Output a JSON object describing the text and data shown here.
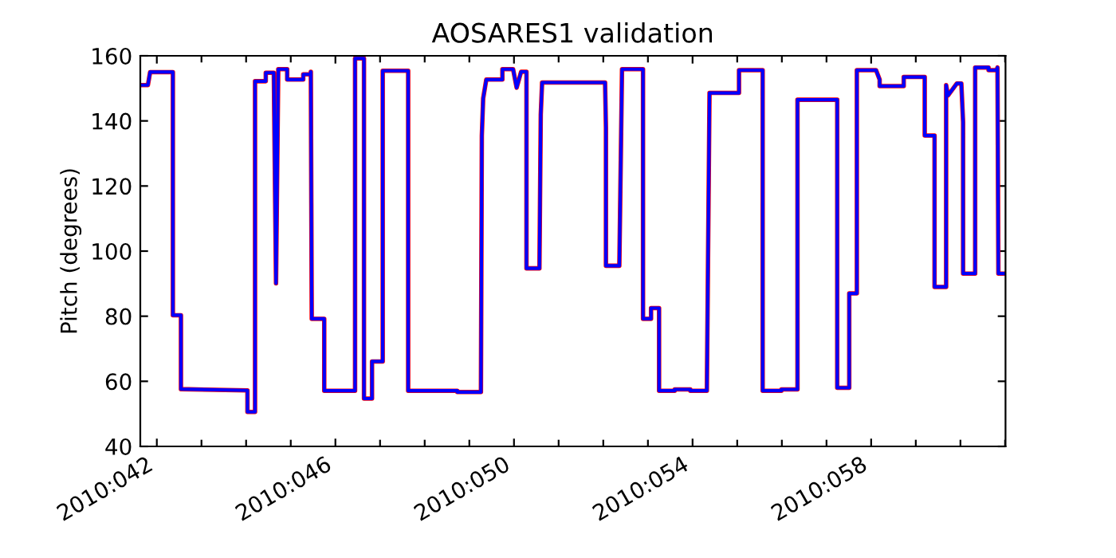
{
  "chart_data": {
    "type": "line",
    "title": "AOSARES1 validation",
    "ylabel": "Pitch (degrees)",
    "x": [
      "2010-02-10T15:07",
      "2010-02-10T19:12",
      "2010-02-10T20:24",
      "2010-02-11T08:38",
      "2010-02-11T08:38",
      "2010-02-11T12:58",
      "2010-02-11T12:58",
      "2010-02-13T00:43",
      "2010-02-13T00:43",
      "2010-02-13T04:48",
      "2010-02-13T04:48",
      "2010-02-13T10:34",
      "2010-02-13T10:34",
      "2010-02-13T14:53",
      "2010-02-13T16:05",
      "2010-02-13T17:17",
      "2010-02-13T22:05",
      "2010-02-13T22:05",
      "2010-02-14T06:43",
      "2010-02-14T06:43",
      "2010-02-14T10:48",
      "2010-02-14T10:48",
      "2010-02-14T11:17",
      "2010-02-14T18:00",
      "2010-02-14T18:00",
      "2010-02-15T10:34",
      "2010-02-15T10:34",
      "2010-02-15T15:22",
      "2010-02-15T15:22",
      "2010-02-15T19:41",
      "2010-02-15T19:41",
      "2010-02-16T01:26",
      "2010-02-16T01:26",
      "2010-02-16T15:07",
      "2010-02-16T15:07",
      "2010-02-17T17:31",
      "2010-02-17T17:31",
      "2010-02-18T06:14",
      "2010-02-18T06:43",
      "2010-02-18T07:26",
      "2010-02-18T09:07",
      "2010-02-18T17:46",
      "2010-02-18T17:46",
      "2010-02-18T23:31",
      "2010-02-19T01:26",
      "2010-02-19T03:50",
      "2010-02-19T06:43",
      "2010-02-19T06:43",
      "2010-02-19T13:41",
      "2010-02-19T14:24",
      "2010-02-19T15:07",
      "2010-02-21T00:58",
      "2010-02-21T01:26",
      "2010-02-21T01:26",
      "2010-02-21T08:38",
      "2010-02-21T10:05",
      "2010-02-21T21:22",
      "2010-02-21T21:22",
      "2010-02-22T01:41",
      "2010-02-22T01:41",
      "2010-02-22T06:00",
      "2010-02-22T06:00",
      "2010-02-22T14:24",
      "2010-02-22T14:24",
      "2010-02-22T22:48",
      "2010-02-22T22:48",
      "2010-02-23T07:41",
      "2010-02-23T09:07",
      "2010-02-24T00:58",
      "2010-02-24T00:58",
      "2010-02-24T13:41",
      "2010-02-24T13:41",
      "2010-02-24T23:46",
      "2010-02-24T23:46",
      "2010-02-25T08:24",
      "2010-02-25T08:24",
      "2010-02-26T05:46",
      "2010-02-26T05:46",
      "2010-02-26T12:14",
      "2010-02-26T12:14",
      "2010-02-26T16:19",
      "2010-02-26T16:19",
      "2010-02-27T02:38",
      "2010-02-27T04:34",
      "2010-02-27T04:34",
      "2010-02-27T17:31",
      "2010-02-27T17:31",
      "2010-02-28T04:48",
      "2010-02-28T04:48",
      "2010-02-28T10:05",
      "2010-02-28T10:05",
      "2010-02-28T16:19",
      "2010-02-28T16:19",
      "2010-02-28T17:17",
      "2010-02-28T22:05",
      "2010-03-01T00:29",
      "2010-03-01T01:26",
      "2010-03-01T01:26",
      "2010-03-01T07:55",
      "2010-03-01T07:55",
      "2010-03-01T15:07",
      "2010-03-01T15:07",
      "2010-03-01T19:26",
      "2010-03-01T19:55",
      "2010-03-01T20:24",
      "2010-03-02T00:14"
    ],
    "series": [
      {
        "color": "#ff0000",
        "values": [
          151,
          151,
          155,
          155,
          80.3,
          80.3,
          57.6,
          57.2,
          50.6,
          50.6,
          152.2,
          152.2,
          154.8,
          154.8,
          90.1,
          155.9,
          155.9,
          152.7,
          152.7,
          154.3,
          154.3,
          155.1,
          79.2,
          79.2,
          57.1,
          57.1,
          159.2,
          159.2,
          54.7,
          54.7,
          66.1,
          66.1,
          155.4,
          155.4,
          57.1,
          57.1,
          56.7,
          56.7,
          135.5,
          146.9,
          152.7,
          152.7,
          155.9,
          155.9,
          150.2,
          155.1,
          155.1,
          94.7,
          94.7,
          142.0,
          151.8,
          151.8,
          138,
          95.5,
          95.5,
          155.9,
          155.9,
          79.2,
          79.2,
          82.5,
          82.5,
          57.1,
          57.1,
          57.5,
          57.5,
          57.1,
          57.1,
          148.6,
          148.6,
          155.6,
          155.6,
          57.1,
          57.1,
          57.5,
          57.5,
          146.5,
          146.5,
          58.0,
          58.0,
          87.0,
          87.0,
          155.6,
          155.6,
          152.7,
          150.7,
          150.7,
          153.5,
          153.5,
          135.5,
          135.5,
          89.0,
          89.0,
          151.0,
          147.8,
          151.5,
          151.5,
          139.6,
          93.1,
          93.1,
          156.4,
          156.4,
          155.6,
          155.6,
          156.4,
          93.1,
          93.1
        ]
      },
      {
        "color": "#0000ff",
        "values": [
          151,
          151,
          155,
          155,
          80.3,
          80.3,
          57.6,
          57.2,
          50.6,
          50.6,
          152.2,
          152.2,
          154.8,
          154.8,
          90.1,
          155.9,
          155.9,
          152.7,
          152.7,
          154.3,
          154.3,
          155.1,
          79.2,
          79.2,
          57.1,
          57.1,
          159.2,
          159.2,
          54.7,
          54.7,
          66.1,
          66.1,
          155.4,
          155.4,
          57.1,
          57.1,
          56.7,
          56.7,
          135.5,
          146.9,
          152.7,
          152.7,
          155.9,
          155.9,
          150.2,
          155.1,
          155.1,
          94.7,
          94.7,
          142.0,
          151.8,
          151.8,
          138,
          95.5,
          95.5,
          155.9,
          155.9,
          79.2,
          79.2,
          82.5,
          82.5,
          57.1,
          57.1,
          57.5,
          57.5,
          57.1,
          57.1,
          148.6,
          148.6,
          155.6,
          155.6,
          57.1,
          57.1,
          57.5,
          57.5,
          146.5,
          146.5,
          58.0,
          58.0,
          87.0,
          87.0,
          155.6,
          155.6,
          152.7,
          150.7,
          150.7,
          153.5,
          153.5,
          135.5,
          135.5,
          89.0,
          89.0,
          151.0,
          147.8,
          151.5,
          151.5,
          139.6,
          93.1,
          93.1,
          156.4,
          156.4,
          155.6,
          155.6,
          156.4,
          93.1,
          93.1
        ]
      }
    ],
    "xlim": [
      "2010-02-10T15:07",
      "2010-03-02T00:14"
    ],
    "xticks": [
      {
        "value": "2010-02-11",
        "label": "2010:042"
      },
      {
        "value": "2010-02-12",
        "label": null
      },
      {
        "value": "2010-02-13",
        "label": null
      },
      {
        "value": "2010-02-14",
        "label": null
      },
      {
        "value": "2010-02-15",
        "label": "2010:046"
      },
      {
        "value": "2010-02-16",
        "label": null
      },
      {
        "value": "2010-02-17",
        "label": null
      },
      {
        "value": "2010-02-18",
        "label": null
      },
      {
        "value": "2010-02-19",
        "label": "2010:050"
      },
      {
        "value": "2010-02-20",
        "label": null
      },
      {
        "value": "2010-02-21",
        "label": null
      },
      {
        "value": "2010-02-22",
        "label": null
      },
      {
        "value": "2010-02-23",
        "label": "2010:054"
      },
      {
        "value": "2010-02-24",
        "label": null
      },
      {
        "value": "2010-02-25",
        "label": null
      },
      {
        "value": "2010-02-26",
        "label": null
      },
      {
        "value": "2010-02-27",
        "label": "2010:058"
      },
      {
        "value": "2010-02-28",
        "label": null
      },
      {
        "value": "2010-03-01",
        "label": null
      },
      {
        "value": "2010-03-02",
        "label": null
      }
    ],
    "ylim": [
      40,
      160
    ],
    "yticks": [
      40,
      60,
      80,
      100,
      120,
      140,
      160
    ],
    "grid": false,
    "marker": "none",
    "line_style": "solid"
  }
}
